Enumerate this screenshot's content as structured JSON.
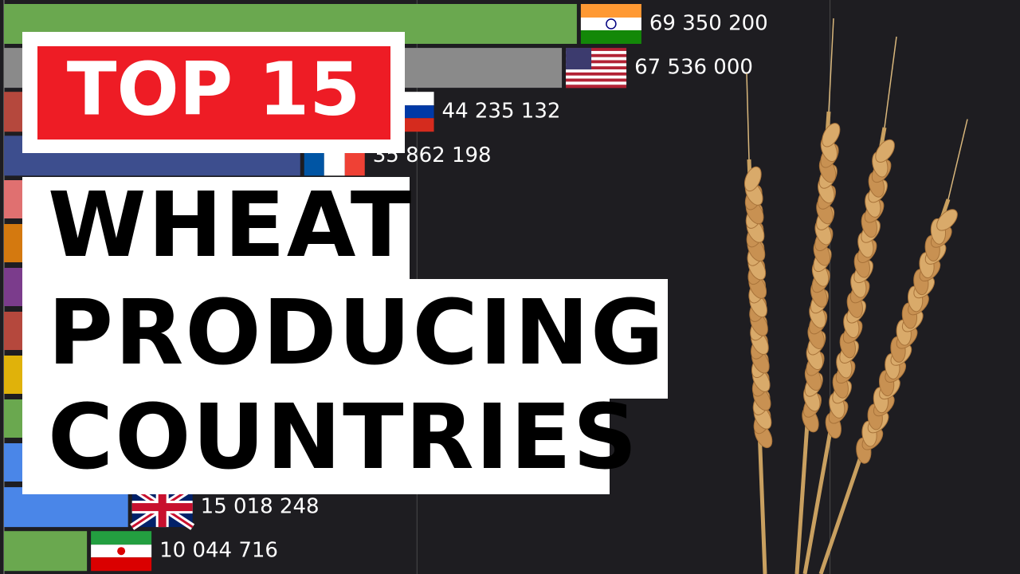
{
  "title_badge": "TOP 15",
  "headline": [
    "WHEAT",
    "PRODUCING",
    "COUNTRIES"
  ],
  "chart_data": {
    "type": "bar",
    "orientation": "horizontal",
    "values": [
      69350200,
      67536000,
      44235132,
      35862198,
      15018248,
      10044716
    ],
    "value_labels": [
      "69 350 200",
      "67 536 000",
      "44 235 132",
      "35 862 198",
      "15 018 248",
      "10 044 716"
    ],
    "colors": [
      "#6aa84f",
      "#8a8a8a",
      "#b5483d",
      "#3d4e8e",
      "#4a86e8",
      "#6aa84f"
    ],
    "xlim": [
      0,
      123000000
    ],
    "xticks": [
      50000000,
      100000000
    ],
    "grid": true
  }
}
